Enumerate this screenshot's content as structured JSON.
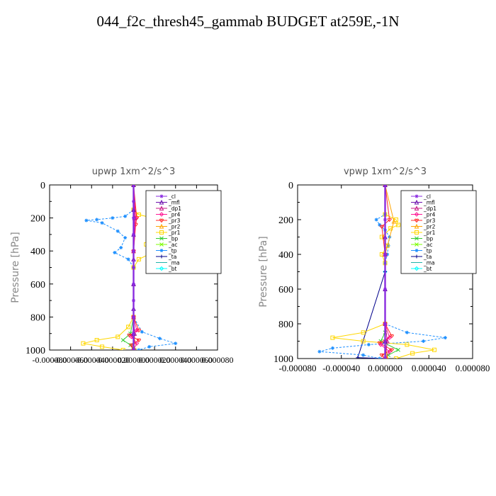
{
  "title": "044_f2c_thresh45_gammab  BUDGET at259E,-1N",
  "chart_data": [
    {
      "type": "line",
      "title": "upwp   1xm^2/s^3",
      "ylabel": "Pressure [hPa]",
      "xlabel": "",
      "xlim": [
        -8e-05,
        8e-05
      ],
      "ylim": [
        1000,
        0
      ],
      "xticks": [
        "-0.000080",
        "-0.000060",
        "-0.000040",
        "-0.000020",
        "0.000000",
        "0.000020",
        "0.000040",
        "0.000060",
        "0.000080"
      ],
      "xtick_values": [
        -8e-05,
        -6e-05,
        -4e-05,
        -2e-05,
        0,
        2e-05,
        4e-05,
        6e-05,
        8e-05
      ],
      "yticks": [
        "0",
        "200",
        "400",
        "600",
        "800",
        "1000"
      ],
      "ytick_values": [
        0,
        200,
        400,
        600,
        800,
        1000
      ],
      "legend_position": "top-right",
      "series": [
        {
          "name": "_cl",
          "color": "#8a2be2",
          "marker": "star",
          "values": [
            [
              0,
              0
            ],
            [
              0,
              100
            ],
            [
              0,
              200
            ],
            [
              0,
              300
            ],
            [
              0,
              400
            ],
            [
              0,
              500
            ],
            [
              0,
              600
            ],
            [
              0,
              700
            ],
            [
              0,
              800
            ],
            [
              0,
              900
            ],
            [
              0,
              1000
            ]
          ]
        },
        {
          "name": "_mfl",
          "color": "#6a0dad",
          "marker": "triangle",
          "values": [
            [
              0,
              0
            ],
            [
              0,
              150
            ],
            [
              0,
              300
            ],
            [
              0,
              450
            ],
            [
              0,
              600
            ],
            [
              0,
              750
            ],
            [
              0,
              900
            ],
            [
              0,
              1000
            ]
          ]
        },
        {
          "name": "_dp1",
          "color": "#c71585",
          "marker": "triangle",
          "values": [
            [
              0,
              0
            ],
            [
              1e-06,
              200
            ],
            [
              0,
              400
            ],
            [
              0,
              600
            ],
            [
              0,
              800
            ],
            [
              1e-06,
              900
            ],
            [
              0,
              1000
            ]
          ]
        },
        {
          "name": "_pr4",
          "color": "#ff1493",
          "marker": "diamond",
          "values": [
            [
              0,
              0
            ],
            [
              2e-06,
              200
            ],
            [
              0,
              400
            ],
            [
              0,
              800
            ],
            [
              3e-06,
              880
            ],
            [
              -2e-06,
              920
            ],
            [
              3e-06,
              960
            ],
            [
              0,
              1000
            ]
          ]
        },
        {
          "name": "_pr3",
          "color": "#ff2a2a",
          "marker": "heart",
          "values": [
            [
              0,
              0
            ],
            [
              3e-06,
              200
            ],
            [
              2e-06,
              240
            ],
            [
              0,
              400
            ],
            [
              0,
              800
            ],
            [
              5e-06,
              880
            ],
            [
              -4e-06,
              910
            ],
            [
              5e-06,
              940
            ],
            [
              -2e-06,
              970
            ],
            [
              0,
              1000
            ]
          ]
        },
        {
          "name": "_pr2",
          "color": "#ffa500",
          "marker": "triangle",
          "values": [
            [
              0,
              0
            ],
            [
              1e-06,
              200
            ],
            [
              0,
              400
            ],
            [
              0,
              800
            ],
            [
              1e-06,
              950
            ],
            [
              0,
              1000
            ]
          ]
        },
        {
          "name": "_pr1",
          "color": "#ffd700",
          "marker": "square",
          "values": [
            [
              0,
              0
            ],
            [
              0,
              150
            ],
            [
              5e-06,
              180
            ],
            [
              1.8e-05,
              200
            ],
            [
              2.2e-05,
              240
            ],
            [
              1.5e-05,
              300
            ],
            [
              1.2e-05,
              360
            ],
            [
              1.8e-05,
              410
            ],
            [
              5e-06,
              450
            ],
            [
              0,
              500
            ],
            [
              0,
              800
            ],
            [
              -5e-06,
              860
            ],
            [
              -1.5e-05,
              920
            ],
            [
              -3.5e-05,
              940
            ],
            [
              -4.8e-05,
              960
            ],
            [
              -3e-05,
              980
            ],
            [
              -1e-05,
              1000
            ]
          ]
        },
        {
          "name": "_bp",
          "color": "#32cd32",
          "marker": "x",
          "values": [
            [
              0,
              0
            ],
            [
              0,
              800
            ],
            [
              -3e-06,
              900
            ],
            [
              -1e-05,
              940
            ],
            [
              -3e-06,
              970
            ],
            [
              0,
              1000
            ]
          ]
        },
        {
          "name": "_ac",
          "color": "#7cfc00",
          "marker": "x",
          "values": [
            [
              0,
              0
            ],
            [
              0,
              900
            ],
            [
              1e-06,
              1000
            ]
          ]
        },
        {
          "name": "_tp",
          "color": "#1e90ff",
          "marker": "star",
          "values": [
            [
              0,
              0
            ],
            [
              0,
              150
            ],
            [
              -8e-06,
              190
            ],
            [
              -2e-05,
              200
            ],
            [
              -3.5e-05,
              210
            ],
            [
              -4.5e-05,
              215
            ],
            [
              -3e-05,
              230
            ],
            [
              -1.5e-05,
              280
            ],
            [
              -8e-06,
              320
            ],
            [
              -1.2e-05,
              380
            ],
            [
              -1.8e-05,
              410
            ],
            [
              -5e-06,
              450
            ],
            [
              0,
              500
            ],
            [
              0,
              800
            ],
            [
              8e-06,
              890
            ],
            [
              2.5e-05,
              930
            ],
            [
              4e-05,
              960
            ],
            [
              1.5e-05,
              980
            ],
            [
              5e-06,
              1000
            ]
          ]
        },
        {
          "name": "_ta",
          "color": "#00008b",
          "marker": "plus",
          "values": [
            [
              0,
              0
            ],
            [
              0,
              500
            ],
            [
              0,
              1000
            ]
          ]
        },
        {
          "name": "_ma",
          "color": "#20b2aa",
          "marker": "line",
          "values": [
            [
              0,
              0
            ],
            [
              0,
              500
            ],
            [
              0,
              1000
            ]
          ]
        },
        {
          "name": "_bt",
          "color": "#00ffff",
          "marker": "diamond",
          "values": [
            [
              0,
              0
            ],
            [
              0,
              500
            ],
            [
              0,
              1000
            ]
          ]
        }
      ]
    },
    {
      "type": "line",
      "title": "vpwp   1xm^2/s^3",
      "ylabel": "Pressure [hPa]",
      "xlabel": "",
      "xlim": [
        -8e-05,
        8e-05
      ],
      "ylim": [
        1000,
        0
      ],
      "xticks": [
        "-0.000080",
        "-0.000040",
        "0.000000",
        "0.000040",
        "0.000080"
      ],
      "xtick_values": [
        -8e-05,
        -4e-05,
        0,
        4e-05,
        8e-05
      ],
      "yticks": [
        "0",
        "200",
        "400",
        "600",
        "800",
        "1000"
      ],
      "ytick_values": [
        0,
        200,
        400,
        600,
        800,
        1000
      ],
      "legend_position": "top-right",
      "series": [
        {
          "name": "_cl",
          "color": "#8a2be2",
          "marker": "star",
          "values": [
            [
              0,
              0
            ],
            [
              0,
              200
            ],
            [
              0,
              400
            ],
            [
              0,
              600
            ],
            [
              0,
              800
            ],
            [
              0,
              1000
            ]
          ]
        },
        {
          "name": "_mfl",
          "color": "#6a0dad",
          "marker": "triangle",
          "values": [
            [
              0,
              0
            ],
            [
              0,
              300
            ],
            [
              0,
              600
            ],
            [
              0,
              900
            ],
            [
              0,
              1000
            ]
          ]
        },
        {
          "name": "_dp1",
          "color": "#c71585",
          "marker": "triangle",
          "values": [
            [
              0,
              0
            ],
            [
              0,
              400
            ],
            [
              0,
              800
            ],
            [
              2e-06,
              900
            ],
            [
              0,
              1000
            ]
          ]
        },
        {
          "name": "_pr4",
          "color": "#ff1493",
          "marker": "diamond",
          "values": [
            [
              0,
              0
            ],
            [
              0,
              800
            ],
            [
              4e-06,
              880
            ],
            [
              -4e-06,
              920
            ],
            [
              4e-06,
              960
            ],
            [
              0,
              1000
            ]
          ]
        },
        {
          "name": "_pr3",
          "color": "#ff2a2a",
          "marker": "heart",
          "values": [
            [
              0,
              0
            ],
            [
              4e-06,
              200
            ],
            [
              -3e-06,
              240
            ],
            [
              0,
              400
            ],
            [
              0,
              800
            ],
            [
              6e-06,
              870
            ],
            [
              -5e-06,
              910
            ],
            [
              6e-06,
              950
            ],
            [
              -3e-06,
              980
            ],
            [
              0,
              1000
            ]
          ]
        },
        {
          "name": "_pr2",
          "color": "#ffa500",
          "marker": "triangle",
          "values": [
            [
              0,
              0
            ],
            [
              8e-06,
              210
            ],
            [
              0,
              400
            ],
            [
              0,
              900
            ],
            [
              2e-06,
              1000
            ]
          ]
        },
        {
          "name": "_pr1",
          "color": "#ffd700",
          "marker": "square",
          "values": [
            [
              0,
              0
            ],
            [
              0,
              170
            ],
            [
              1e-05,
              200
            ],
            [
              1.2e-05,
              230
            ],
            [
              5e-06,
              250
            ],
            [
              -3e-06,
              300
            ],
            [
              2e-06,
              350
            ],
            [
              -3e-06,
              400
            ],
            [
              0,
              450
            ],
            [
              0,
              800
            ],
            [
              -2e-05,
              850
            ],
            [
              -4.8e-05,
              880
            ],
            [
              -2e-05,
              900
            ],
            [
              2e-05,
              920
            ],
            [
              4.5e-05,
              950
            ],
            [
              2.5e-05,
              970
            ],
            [
              1e-05,
              1000
            ]
          ]
        },
        {
          "name": "_bp",
          "color": "#32cd32",
          "marker": "x",
          "values": [
            [
              0,
              0
            ],
            [
              0,
              850
            ],
            [
              -4e-06,
              900
            ],
            [
              1.2e-05,
              950
            ],
            [
              3e-06,
              980
            ],
            [
              0,
              1000
            ]
          ]
        },
        {
          "name": "_ac",
          "color": "#7cfc00",
          "marker": "x",
          "values": [
            [
              0,
              0
            ],
            [
              0,
              900
            ],
            [
              1e-06,
              1000
            ]
          ]
        },
        {
          "name": "_tp",
          "color": "#1e90ff",
          "marker": "star",
          "values": [
            [
              0,
              0
            ],
            [
              0,
              170
            ],
            [
              -8e-06,
              200
            ],
            [
              -5e-06,
              230
            ],
            [
              0,
              260
            ],
            [
              4e-06,
              300
            ],
            [
              3e-06,
              350
            ],
            [
              2e-06,
              400
            ],
            [
              0,
              450
            ],
            [
              0,
              800
            ],
            [
              2e-05,
              850
            ],
            [
              5.5e-05,
              880
            ],
            [
              3.5e-05,
              900
            ],
            [
              -1.5e-05,
              920
            ],
            [
              -4.8e-05,
              940
            ],
            [
              -6e-05,
              960
            ],
            [
              -2e-05,
              980
            ],
            [
              -5e-06,
              1000
            ]
          ]
        },
        {
          "name": "_ta",
          "color": "#00008b",
          "marker": "plus",
          "values": [
            [
              0,
              0
            ],
            [
              0,
              500
            ],
            [
              -2.5e-05,
              995
            ],
            [
              0,
              1000
            ]
          ]
        },
        {
          "name": "_ma",
          "color": "#20b2aa",
          "marker": "line",
          "values": [
            [
              0,
              0
            ],
            [
              0,
              500
            ],
            [
              0,
              1000
            ]
          ]
        },
        {
          "name": "_bt",
          "color": "#00ffff",
          "marker": "diamond",
          "values": [
            [
              0,
              0
            ],
            [
              0,
              500
            ],
            [
              0,
              1000
            ]
          ]
        }
      ]
    }
  ]
}
